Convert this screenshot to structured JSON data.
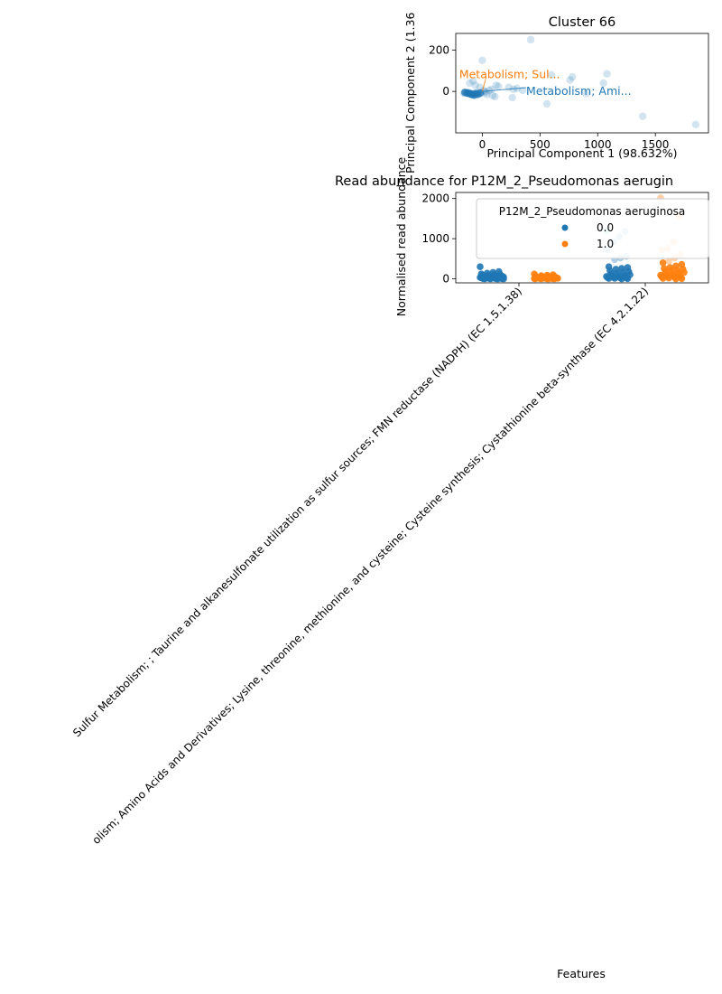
{
  "chart_data": [
    {
      "type": "scatter",
      "title": "Cluster 66",
      "xlabel": "Principal Component 1 (98.632%)",
      "ylabel": "Principal Component 2 (1.36",
      "xlim": [
        -230,
        1960
      ],
      "ylim": [
        -200,
        280
      ],
      "xticks": [
        0,
        500,
        1000,
        1500
      ],
      "yticks": [
        0,
        200
      ],
      "grid": false,
      "points": [
        [
          420,
          250
        ],
        [
          0,
          150
        ],
        [
          600,
          80
        ],
        [
          780,
          70
        ],
        [
          1080,
          85
        ],
        [
          760,
          55
        ],
        [
          1050,
          40
        ],
        [
          230,
          20
        ],
        [
          270,
          10
        ],
        [
          300,
          15
        ],
        [
          350,
          5
        ],
        [
          120,
          30
        ],
        [
          140,
          25
        ],
        [
          80,
          10
        ],
        [
          60,
          5
        ],
        [
          20,
          0
        ],
        [
          -10,
          -10
        ],
        [
          40,
          -15
        ],
        [
          90,
          -20
        ],
        [
          110,
          -25
        ],
        [
          260,
          -30
        ],
        [
          560,
          -60
        ],
        [
          900,
          -10
        ],
        [
          1390,
          -120
        ],
        [
          1850,
          -160
        ],
        [
          -80,
          50
        ],
        [
          -110,
          40
        ],
        [
          -60,
          30
        ],
        [
          -150,
          -5
        ],
        [
          -130,
          -8
        ],
        [
          -100,
          -12
        ],
        [
          -90,
          -10
        ],
        [
          -70,
          -15
        ],
        [
          -50,
          -12
        ],
        [
          -120,
          -5
        ],
        [
          -160,
          -8
        ],
        [
          -40,
          -5
        ],
        [
          10,
          5
        ],
        [
          -20,
          20
        ],
        [
          30,
          -5
        ]
      ],
      "dark_points": [
        [
          -150,
          -5
        ],
        [
          -130,
          -8
        ],
        [
          -100,
          -12
        ],
        [
          -90,
          -15
        ],
        [
          -70,
          -18
        ],
        [
          -60,
          -10
        ],
        [
          -40,
          -14
        ],
        [
          -115,
          -10
        ],
        [
          -20,
          -8
        ]
      ],
      "annotations": [
        {
          "text": "Metabolism; Sul...",
          "x": -200,
          "y": 85,
          "color": "#ff7f0e",
          "arrow_to": [
            0,
            0
          ]
        },
        {
          "text": "Metabolism; Ami...",
          "x": 380,
          "y": 5,
          "color": "#1f77b4",
          "arrow_to": [
            0,
            0
          ]
        }
      ]
    },
    {
      "type": "strip",
      "title": "Read abundance for P12M_2_Pseudomonas aerugin",
      "xlabel": "Features",
      "ylabel": "Normalised read abundance",
      "ylim": [
        -100,
        2150
      ],
      "yticks": [
        0,
        1000,
        2000
      ],
      "categories": [
        "Sulfur Metabolism; ; Taurine and alkanesulfonate utilization as sulfur sources; FMN reductase (NADPH) (EC 1.5.1.38)",
        "olism; Amino Acids and Derivatives; Lysine, threonine, methionine, and cysteine; Cysteine synthesis; Cystathionine beta-synthase (EC 4.2.1.22)"
      ],
      "legend": {
        "title": "P12M_2_Pseudomonas aeruginosa",
        "placement": "upper-right",
        "entries": [
          {
            "label": "0.0",
            "color": "#1f77b4"
          },
          {
            "label": "1.0",
            "color": "#ff7f0e"
          }
        ]
      },
      "groups": [
        {
          "category": 0,
          "hue": "0.0",
          "color": "#1f77b4",
          "values": [
            300,
            180,
            160,
            140,
            120,
            110,
            100,
            90,
            85,
            80,
            75,
            70,
            65,
            60,
            55,
            50,
            48,
            45,
            42,
            40,
            38,
            35,
            32,
            30,
            28,
            25,
            22,
            20,
            18,
            15,
            12,
            10,
            8,
            6,
            5,
            4,
            3,
            2,
            1,
            0
          ]
        },
        {
          "category": 0,
          "hue": "1.0",
          "color": "#ff7f0e",
          "values": [
            120,
            100,
            90,
            80,
            70,
            60,
            55,
            50,
            45,
            40,
            35,
            30,
            28,
            25,
            22,
            20,
            18,
            15,
            12,
            10,
            8,
            6,
            5,
            4,
            3,
            2,
            1,
            0
          ]
        },
        {
          "category": 1,
          "hue": "0.0",
          "color": "#1f77b4",
          "values": [
            1200,
            1180,
            1050,
            920,
            720,
            560,
            520,
            480,
            300,
            280,
            260,
            240,
            200,
            180,
            160,
            140,
            120,
            100,
            90,
            80,
            70,
            60,
            50,
            40,
            35,
            30,
            25,
            20,
            15,
            10,
            5,
            0
          ]
        },
        {
          "category": 1,
          "hue": "1.0",
          "color": "#ff7f0e",
          "values": [
            2020,
            1560,
            920,
            760,
            720,
            600,
            520,
            440,
            400,
            360,
            320,
            280,
            260,
            240,
            220,
            200,
            180,
            160,
            140,
            120,
            100,
            90,
            80,
            70,
            60,
            50,
            40,
            30,
            20,
            10,
            5,
            0
          ]
        }
      ]
    }
  ]
}
